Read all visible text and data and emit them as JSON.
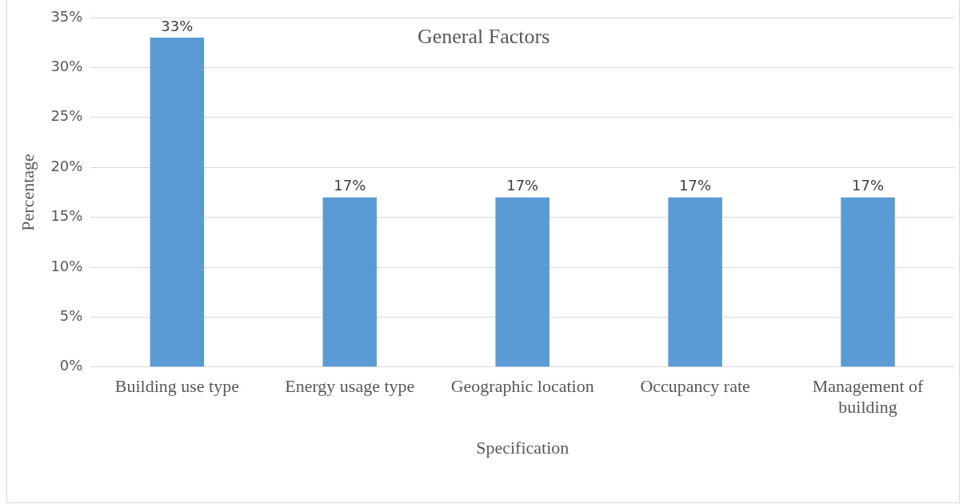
{
  "chart_data": {
    "type": "bar",
    "title": "General Factors",
    "xlabel": "Specification",
    "ylabel": "Percentage",
    "categories": [
      "Building use type",
      "Energy usage type",
      "Geographic location",
      "Occupancy rate",
      "Management of building"
    ],
    "values": [
      33,
      17,
      17,
      17,
      17
    ],
    "value_labels": [
      "33%",
      "17%",
      "17%",
      "17%",
      "17%"
    ],
    "color": "#5b9bd5",
    "ylim": [
      0,
      35
    ],
    "yticks": [
      {
        "value": 0,
        "label": "0%"
      },
      {
        "value": 5,
        "label": "5%"
      },
      {
        "value": 10,
        "label": "10%"
      },
      {
        "value": 15,
        "label": "15%"
      },
      {
        "value": 20,
        "label": "20%"
      },
      {
        "value": 25,
        "label": "25%"
      },
      {
        "value": 30,
        "label": "30%"
      },
      {
        "value": 35,
        "label": "35%"
      }
    ],
    "grid": "y",
    "legend": false
  }
}
